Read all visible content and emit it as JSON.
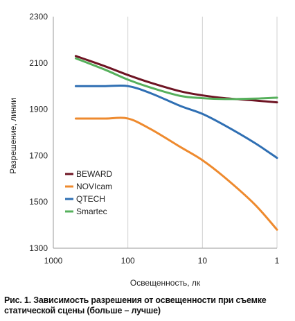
{
  "chart_data": {
    "type": "line",
    "xlabel": "Освещенность, лк",
    "ylabel": "Разрешение, линии",
    "x_scale": "log",
    "x_reversed": true,
    "xlim": [
      1000,
      1
    ],
    "ylim": [
      1300,
      2300
    ],
    "x_ticks": [
      {
        "value": 1000,
        "label": "1000"
      },
      {
        "value": 100,
        "label": "100"
      },
      {
        "value": 10,
        "label": "10"
      },
      {
        "value": 1,
        "label": "1"
      }
    ],
    "y_ticks": [
      {
        "value": 1300,
        "label": "1300"
      },
      {
        "value": 1500,
        "label": "1500"
      },
      {
        "value": 1700,
        "label": "1700"
      },
      {
        "value": 1900,
        "label": "1900"
      },
      {
        "value": 2100,
        "label": "2100"
      },
      {
        "value": 2300,
        "label": "2300"
      }
    ],
    "grid": "vertical",
    "legend_position": "lower-left",
    "series": [
      {
        "name": "BEWARD",
        "color": "#6e1423",
        "x": [
          500,
          200,
          100,
          50,
          20,
          10,
          5,
          2,
          1
        ],
        "y": [
          2130,
          2085,
          2048,
          2015,
          1978,
          1960,
          1948,
          1938,
          1930
        ]
      },
      {
        "name": "NOVIcam",
        "color": "#ee8a2e",
        "x": [
          500,
          200,
          100,
          50,
          20,
          10,
          5,
          2,
          1
        ],
        "y": [
          1860,
          1860,
          1860,
          1815,
          1738,
          1680,
          1605,
          1490,
          1380
        ]
      },
      {
        "name": "QTECH",
        "color": "#2f6fb3",
        "x": [
          500,
          200,
          100,
          50,
          20,
          10,
          5,
          2,
          1
        ],
        "y": [
          2000,
          2000,
          2000,
          1970,
          1915,
          1880,
          1830,
          1755,
          1690
        ]
      },
      {
        "name": "Smartec",
        "color": "#56b05c",
        "x": [
          500,
          200,
          100,
          50,
          20,
          10,
          5,
          2,
          1
        ],
        "y": [
          2120,
          2070,
          2028,
          1994,
          1958,
          1948,
          1944,
          1946,
          1950
        ]
      }
    ]
  },
  "caption": "Рис. 1. Зависимость разрешения от освещенности при съемке статической сцены (больше – лучше)"
}
